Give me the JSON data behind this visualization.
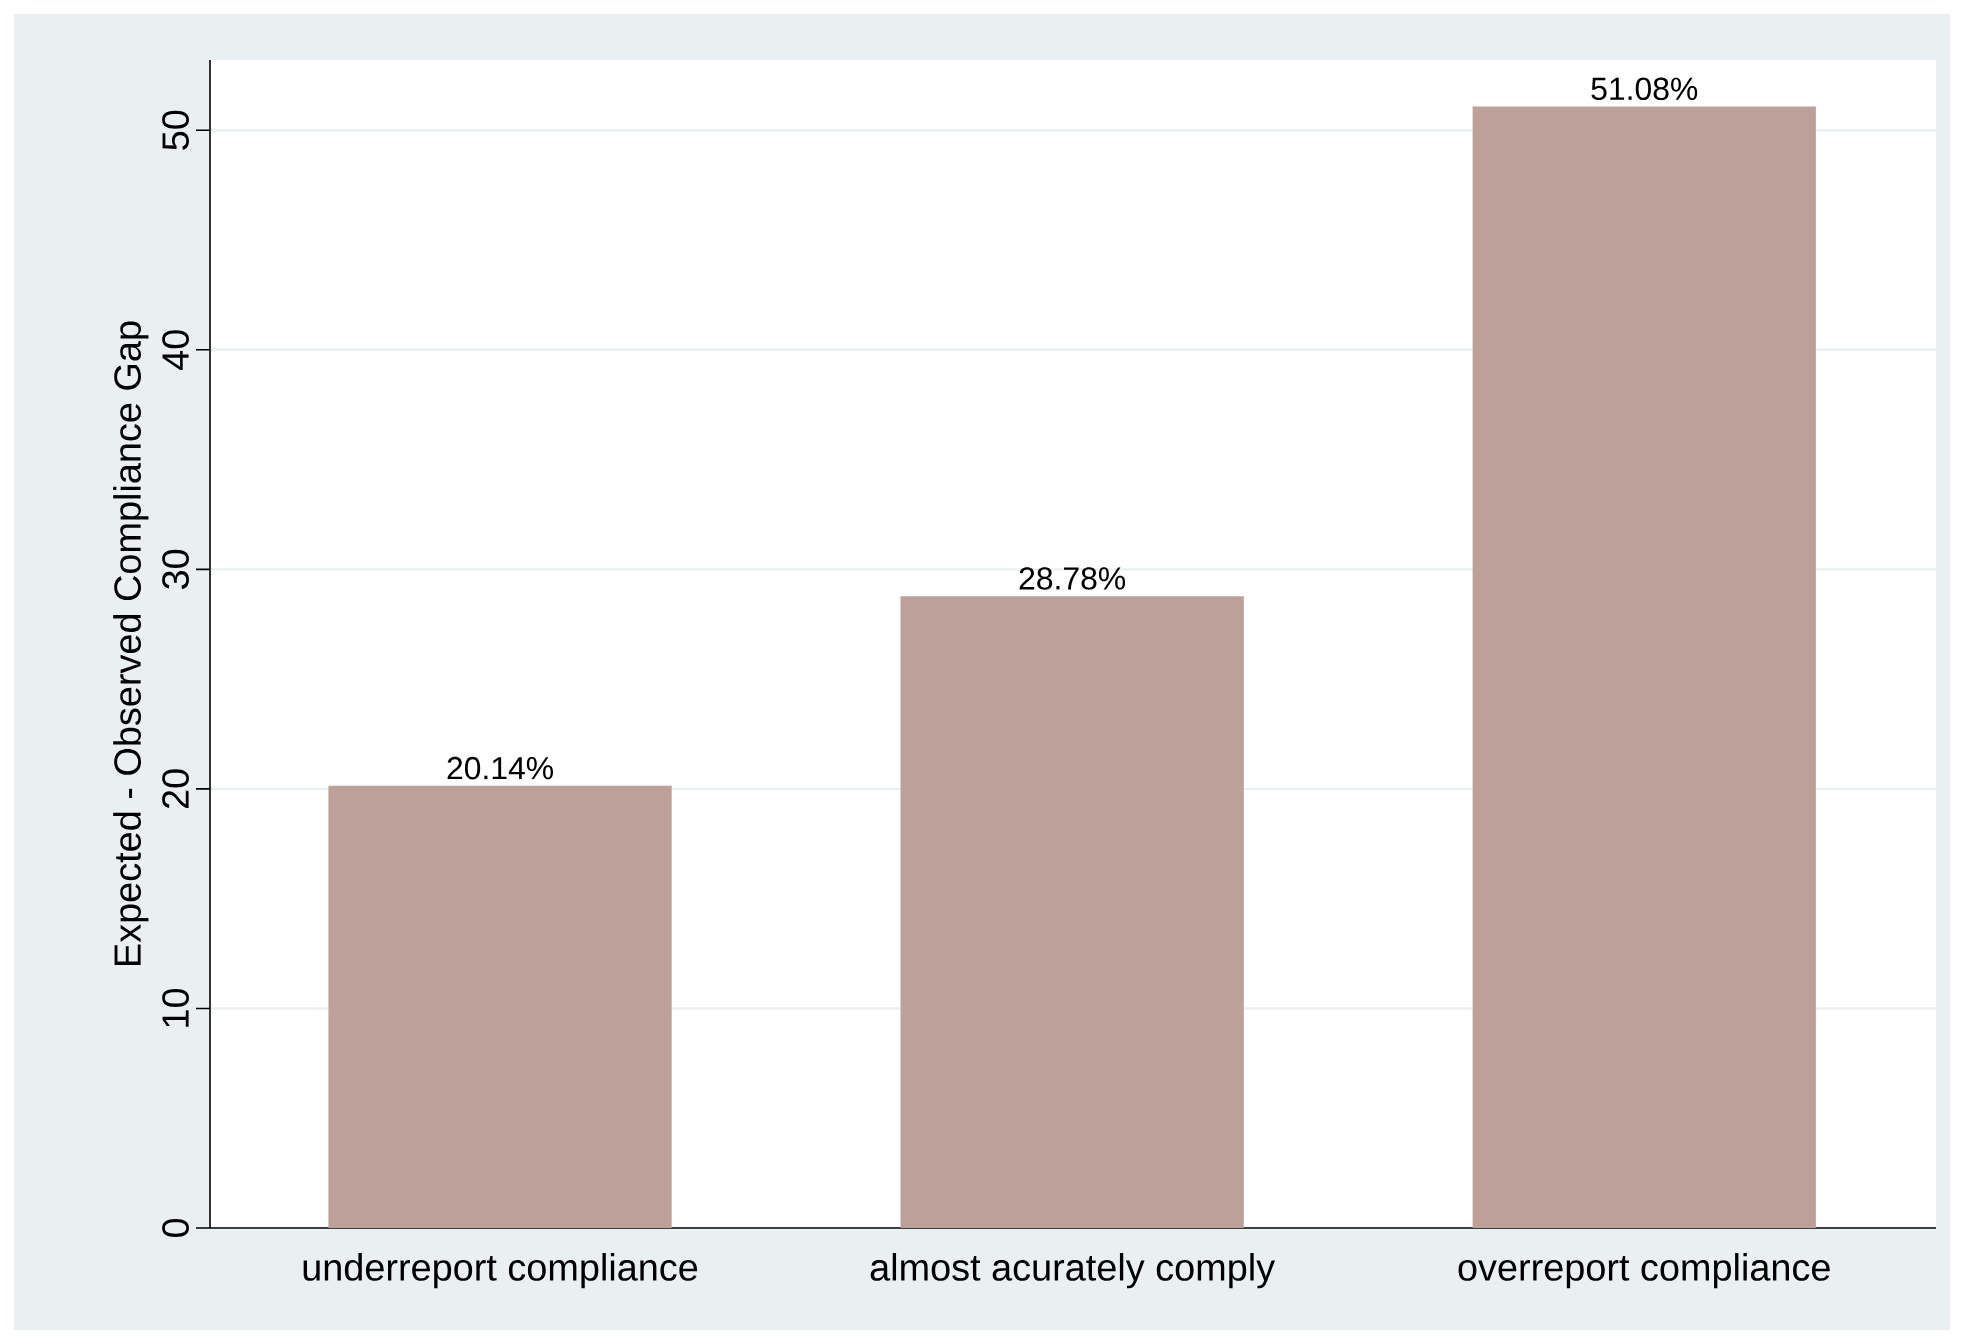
{
  "chart_data": {
    "type": "bar",
    "ylabel": "Expected - Observed Compliance Gap",
    "categories": [
      "underreport compliance",
      "almost acurately comply",
      "overreport compliance"
    ],
    "values": [
      20.14,
      28.78,
      51.08
    ],
    "value_labels": [
      "20.14%",
      "28.78%",
      "51.08%"
    ],
    "color": "#bda09a",
    "ylim": [
      0,
      53.2
    ],
    "yticks": [
      0,
      10,
      20,
      30,
      40,
      50
    ],
    "grid": "y"
  }
}
